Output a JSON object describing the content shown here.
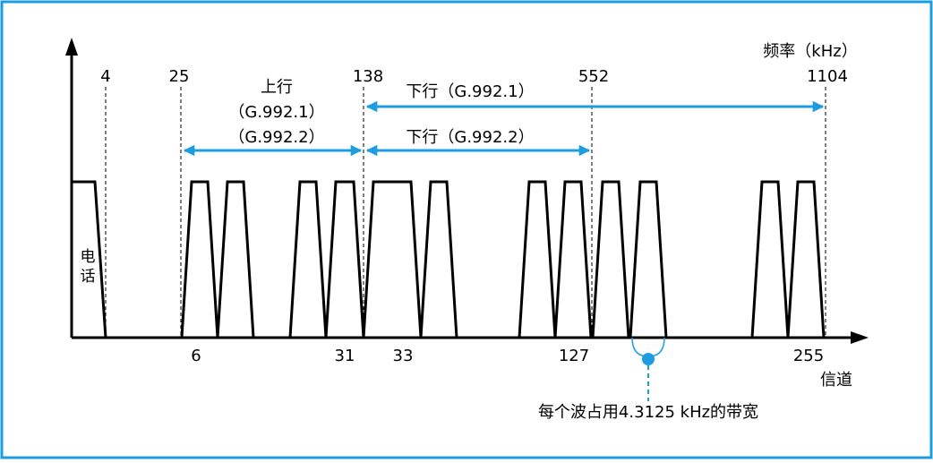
{
  "frame_color": "#1e9ce0",
  "accent_color": "#1e9ce0",
  "axes": {
    "freq_unit_label": "频率（kHz）",
    "channel_label": "信道"
  },
  "frequency_ticks": [
    "4",
    "25",
    "138",
    "552",
    "1104"
  ],
  "channel_ticks": [
    "6",
    "31",
    "33",
    "127",
    "255"
  ],
  "phone_label": "电话",
  "upstream": {
    "title": "上行",
    "std1": "（G.992.1）",
    "std2": "（G.992.2）"
  },
  "downstream": {
    "g9921": "下行（G.992.1）",
    "g9922": "下行（G.992.2）"
  },
  "annotation": "每个波占用4.3125 kHz的带宽"
}
